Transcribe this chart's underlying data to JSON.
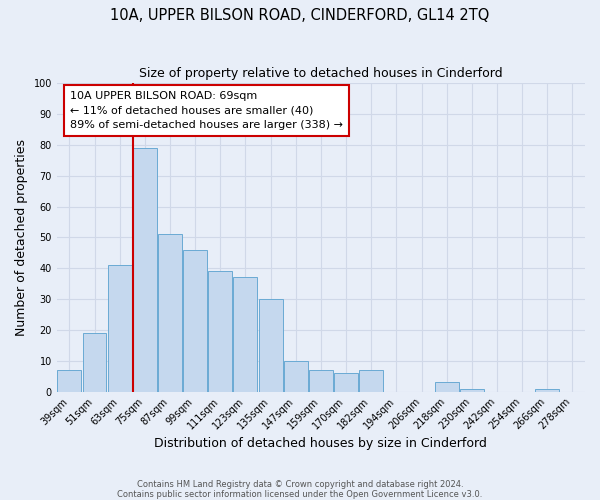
{
  "title": "10A, UPPER BILSON ROAD, CINDERFORD, GL14 2TQ",
  "subtitle": "Size of property relative to detached houses in Cinderford",
  "xlabel": "Distribution of detached houses by size in Cinderford",
  "ylabel": "Number of detached properties",
  "bar_labels": [
    "39sqm",
    "51sqm",
    "63sqm",
    "75sqm",
    "87sqm",
    "99sqm",
    "111sqm",
    "123sqm",
    "135sqm",
    "147sqm",
    "159sqm",
    "170sqm",
    "182sqm",
    "194sqm",
    "206sqm",
    "218sqm",
    "230sqm",
    "242sqm",
    "254sqm",
    "266sqm",
    "278sqm"
  ],
  "bar_values": [
    7,
    19,
    41,
    79,
    51,
    46,
    39,
    37,
    30,
    10,
    7,
    6,
    7,
    0,
    0,
    3,
    1,
    0,
    0,
    1,
    0
  ],
  "bar_color": "#c5d8ee",
  "bar_edge_color": "#6aaad4",
  "vline_bar_index": 3,
  "vline_color": "#cc0000",
  "ylim": [
    0,
    100
  ],
  "yticks": [
    0,
    10,
    20,
    30,
    40,
    50,
    60,
    70,
    80,
    90,
    100
  ],
  "annotation_title": "10A UPPER BILSON ROAD: 69sqm",
  "annotation_line1": "← 11% of detached houses are smaller (40)",
  "annotation_line2": "89% of semi-detached houses are larger (338) →",
  "annotation_box_color": "#ffffff",
  "annotation_box_edge_color": "#cc0000",
  "footer1": "Contains HM Land Registry data © Crown copyright and database right 2024.",
  "footer2": "Contains public sector information licensed under the Open Government Licence v3.0.",
  "background_color": "#e8eef8",
  "grid_color": "#d0d8e8",
  "title_fontsize": 10.5,
  "subtitle_fontsize": 9,
  "label_fontsize": 9,
  "tick_fontsize": 7,
  "footer_fontsize": 6,
  "annot_fontsize": 8
}
